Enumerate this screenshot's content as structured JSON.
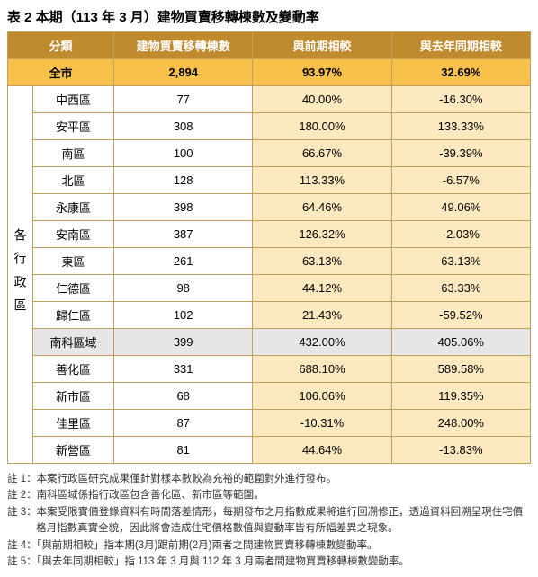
{
  "title": "表 2 本期（113 年 3 月）建物買賣移轉棟數及變動率",
  "headers": {
    "cat": "分類",
    "count": "建物買賣移轉棟數",
    "vs_prev": "與前期相較",
    "vs_year": "與去年同期相較"
  },
  "city": {
    "label": "全市",
    "count": "2,894",
    "vs_prev": "93.97%",
    "vs_year": "32.69%"
  },
  "group_label": "各行政區",
  "rows": [
    {
      "name": "中西區",
      "count": "77",
      "vs_prev": "40.00%",
      "vs_year": "-16.30%",
      "hl": false
    },
    {
      "name": "安平區",
      "count": "308",
      "vs_prev": "180.00%",
      "vs_year": "133.33%",
      "hl": false
    },
    {
      "name": "南區",
      "count": "100",
      "vs_prev": "66.67%",
      "vs_year": "-39.39%",
      "hl": false
    },
    {
      "name": "北區",
      "count": "128",
      "vs_prev": "113.33%",
      "vs_year": "-6.57%",
      "hl": false
    },
    {
      "name": "永康區",
      "count": "398",
      "vs_prev": "64.46%",
      "vs_year": "49.06%",
      "hl": false
    },
    {
      "name": "安南區",
      "count": "387",
      "vs_prev": "126.32%",
      "vs_year": "-2.03%",
      "hl": false
    },
    {
      "name": "東區",
      "count": "261",
      "vs_prev": "63.13%",
      "vs_year": "63.13%",
      "hl": false
    },
    {
      "name": "仁德區",
      "count": "98",
      "vs_prev": "44.12%",
      "vs_year": "63.33%",
      "hl": false
    },
    {
      "name": "歸仁區",
      "count": "102",
      "vs_prev": "21.43%",
      "vs_year": "-59.52%",
      "hl": false
    },
    {
      "name": "南科區域",
      "count": "399",
      "vs_prev": "432.00%",
      "vs_year": "405.06%",
      "hl": true
    },
    {
      "name": "善化區",
      "count": "331",
      "vs_prev": "688.10%",
      "vs_year": "589.58%",
      "hl": false
    },
    {
      "name": "新市區",
      "count": "68",
      "vs_prev": "106.06%",
      "vs_year": "119.35%",
      "hl": false
    },
    {
      "name": "佳里區",
      "count": "87",
      "vs_prev": "-10.31%",
      "vs_year": "248.00%",
      "hl": false
    },
    {
      "name": "新營區",
      "count": "81",
      "vs_prev": "44.64%",
      "vs_year": "-13.83%",
      "hl": false
    }
  ],
  "notes": [
    "註 1：本案行政區研究成果僅針對樣本數較為充裕的範圍對外進行發布。",
    "註 2：南科區域係指行政區包含善化區、新市區等範圍。",
    "註 3：本案受限實價登錄資料有時間落差情形，每期發布之月指數成果將進行回溯修正，透過資料回溯呈現住宅價格月指數真實全貌，因此將會造成住宅價格數值與變動率皆有所幅差異之現象。",
    "註 4：「與前期相較」指本期(3月)跟前期(2月)兩者之間建物買賣移轉棟數變動率。",
    "註 5：「與去年同期相較」指 113 年 3 月與 112 年 3 月兩者間建物買賣移轉棟數變動率。"
  ],
  "colors": {
    "header_bg": "#c08a2e",
    "city_bg": "#f8c14c",
    "pct_bg": "#fce9c0",
    "hl_bg": "#e6e6e6",
    "border": "#c0a060"
  }
}
